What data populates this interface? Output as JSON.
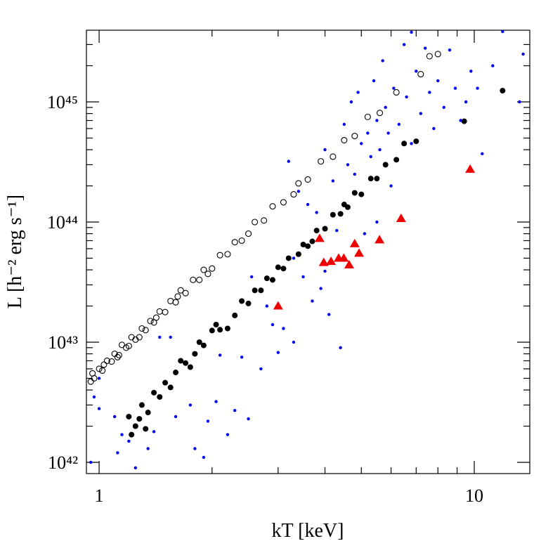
{
  "chart_data": {
    "type": "scatter",
    "xlabel": "kT [keV]",
    "ylabel": "L [h⁻² erg s⁻¹]",
    "xscale": "log",
    "yscale": "log",
    "xlim": [
      0.925,
      14.06
    ],
    "ylim": [
      8.06e+41,
      3.95e+45
    ],
    "xticks": [
      1,
      10
    ],
    "yticks": [
      {
        "value": 1e+42,
        "label": "10⁴²"
      },
      {
        "value": 1e+43,
        "label": "10⁴³"
      },
      {
        "value": 1e+44,
        "label": "10⁴⁴"
      },
      {
        "value": 1e+45,
        "label": "10⁴⁵"
      }
    ],
    "xminorticks": [
      2,
      3,
      4,
      5,
      6,
      7,
      8,
      9
    ],
    "yminorticks": [
      2e+42,
      3e+42,
      4e+42,
      5e+42,
      6e+42,
      7e+42,
      8e+42,
      9e+42,
      2e+43,
      3e+43,
      4e+43,
      5e+43,
      6e+43,
      7e+43,
      8e+43,
      9e+43,
      2e+44,
      3e+44,
      4e+44,
      5e+44,
      6e+44,
      7e+44,
      8e+44,
      9e+44,
      2e+45,
      3e+45
    ],
    "series": [
      {
        "marker": "open-circle",
        "color": "#000000",
        "x": [
          0.95,
          0.97,
          1.0,
          1.02,
          1.05,
          1.08,
          1.1,
          1.13,
          1.15,
          1.2,
          1.22,
          1.25,
          1.3,
          1.33,
          1.37,
          1.4,
          1.45,
          1.5,
          1.55,
          1.6,
          1.65,
          1.7,
          1.78,
          1.85,
          1.9,
          2.0,
          2.1,
          2.2,
          2.3,
          2.4,
          2.6,
          2.75,
          2.9,
          3.1,
          3.4,
          3.6,
          3.9,
          4.2,
          4.5,
          4.8,
          5.2,
          5.6,
          6.2,
          7.2,
          7.6,
          8.0,
          0.96,
          1.03,
          1.12,
          1.18,
          1.28,
          1.42,
          1.62,
          1.95,
          2.5,
          3.3
        ],
        "values": [
          4.7e+42,
          5e+42,
          6e+42,
          5.8e+42,
          7e+42,
          6.9e+42,
          8e+42,
          7.8e+42,
          9.5e+42,
          9.3e+42,
          1.1e+43,
          1.05e+43,
          1.3e+43,
          1.26e+43,
          1.5e+43,
          1.46e+43,
          1.8e+43,
          1.78e+43,
          2.2e+43,
          2.15e+43,
          2.7e+43,
          2.56e+43,
          3.3e+43,
          3.3e+43,
          4e+43,
          4.1e+43,
          5.3e+43,
          5.4e+43,
          6.8e+43,
          7e+43,
          1e+44,
          1.03e+44,
          1.35e+44,
          1.46e+44,
          2.1e+44,
          2.26e+44,
          3.2e+44,
          3.5e+44,
          4.8e+44,
          5.2e+44,
          7.5e+44,
          8.1e+44,
          1.2e+45,
          1.7e+45,
          2.4e+45,
          2.5e+45,
          5.5e+42,
          6.5e+42,
          7.5e+42,
          9e+42,
          1.1e+43,
          1.6e+43,
          2.4e+43,
          3.7e+43,
          8e+43,
          1.7e+44
        ]
      },
      {
        "marker": "dot",
        "color": "#000000",
        "x": [
          1.2,
          1.25,
          1.3,
          1.35,
          1.4,
          1.45,
          1.5,
          1.55,
          1.6,
          1.65,
          1.7,
          1.75,
          1.8,
          1.85,
          1.9,
          2.0,
          2.1,
          2.2,
          2.3,
          2.4,
          2.5,
          2.6,
          2.7,
          2.8,
          2.9,
          3.0,
          3.1,
          3.2,
          3.4,
          3.5,
          3.7,
          3.8,
          4.0,
          4.2,
          4.4,
          4.5,
          4.6,
          4.8,
          5.0,
          5.3,
          5.5,
          5.8,
          6.2,
          6.5,
          7.0,
          9.4,
          11.9,
          1.22,
          1.28,
          1.33,
          2.05,
          3.6
        ],
        "values": [
          2.4e+42,
          2e+42,
          3e+42,
          2.6e+42,
          3.8e+42,
          3.5e+42,
          4.6e+42,
          4.2e+42,
          5.6e+42,
          7e+42,
          6.7e+42,
          6.2e+42,
          8e+42,
          1e+43,
          9.4e+42,
          1.25e+43,
          1.27e+43,
          1.3e+43,
          1.67e+43,
          2.2e+43,
          2.1e+43,
          2.7e+43,
          2.7e+43,
          3.4e+43,
          3.3e+43,
          4.2e+43,
          4.1e+43,
          5e+43,
          5.4e+43,
          6.5e+43,
          6.9e+43,
          8.5e+43,
          8.8e+43,
          1.15e+44,
          1.17e+44,
          1.4e+44,
          1.33e+44,
          1.75e+44,
          1.7e+44,
          2.3e+44,
          2.3e+44,
          3e+44,
          3.3e+44,
          4.5e+44,
          4.7e+44,
          6.9e+44,
          1.24e+45,
          1.7e+42,
          2.3e+42,
          1.9e+42,
          1.4e+43,
          6.3e+43
        ]
      },
      {
        "marker": "small-dot",
        "color": "#0000ee",
        "x": [
          0.95,
          1.0,
          0.97,
          1.1,
          1.12,
          1.2,
          1.25,
          1.35,
          1.4,
          1.45,
          1.55,
          1.6,
          1.75,
          1.9,
          1.95,
          2.05,
          2.2,
          2.3,
          2.5,
          2.4,
          2.55,
          2.7,
          2.9,
          3.1,
          3.2,
          3.3,
          3.0,
          3.4,
          3.5,
          3.6,
          3.7,
          3.8,
          3.9,
          4.0,
          4.1,
          4.2,
          4.3,
          4.4,
          4.5,
          4.6,
          4.7,
          4.8,
          4.9,
          5.0,
          5.1,
          5.2,
          5.3,
          5.4,
          5.5,
          5.6,
          5.7,
          5.8,
          5.9,
          6.0,
          6.1,
          6.3,
          6.5,
          6.6,
          6.8,
          7.0,
          7.2,
          7.4,
          7.6,
          7.8,
          8.0,
          8.3,
          8.6,
          8.9,
          9.2,
          9.5,
          9.8,
          10.2,
          10.5,
          11.2,
          11.9,
          13.5,
          13.2,
          6.8,
          5.5,
          4.0,
          3.3,
          2.8,
          2.1,
          1.8,
          1.0,
          1.15
        ],
        "values": [
          1e+42,
          2.8e+42,
          3.5e+42,
          2.4e+42,
          1.2e+42,
          1.5e+42,
          9e+41,
          1.3e+42,
          1.8e+42,
          1.1e+43,
          1.1e+43,
          2.4e+42,
          3e+42,
          1.1e+42,
          2.2e+42,
          3.2e+42,
          1.7e+42,
          2.7e+42,
          2.3e+42,
          7.5e+42,
          3.5e+43,
          6e+42,
          1.4e+43,
          1.3e+43,
          3.2e+44,
          1e+43,
          8.2e+42,
          1.8e+44,
          3.5e+43,
          1.4e+44,
          2.2e+43,
          1.2e+44,
          2.8e+43,
          4e+44,
          1.7e+43,
          2.2e+44,
          8.5e+43,
          9e+42,
          6.5e+44,
          3e+44,
          1e+45,
          2.5e+44,
          1.2e+45,
          4.5e+44,
          8e+43,
          5.5e+44,
          3.5e+44,
          1.5e+45,
          7e+44,
          4e+44,
          2.2e+45,
          9e+44,
          5.5e+44,
          2e+44,
          1.3e+45,
          6.5e+44,
          3e+45,
          1.1e+45,
          4.5e+44,
          1.8e+45,
          8e+44,
          2.8e+45,
          1.2e+45,
          6e+44,
          1.5e+45,
          9e+44,
          2.7e+45,
          1.3e+45,
          7e+44,
          1e+45,
          1.8e+45,
          1.3e+45,
          3.7e+44,
          2e+45,
          3.85e+45,
          2.5e+45,
          1e+45,
          3.8e+45,
          1e+44,
          3.9e+43,
          5e+43,
          2e+43,
          7.8e+42,
          1.3e+42,
          5e+42,
          1.7e+42
        ]
      },
      {
        "marker": "triangle",
        "color": "#ee0000",
        "x": [
          3.0,
          3.87,
          3.97,
          4.15,
          4.35,
          4.49,
          4.64,
          4.8,
          4.93,
          5.59,
          6.38,
          9.75
        ],
        "values": [
          2e+43,
          7.3e+43,
          4.6e+43,
          4.7e+43,
          5e+43,
          5e+43,
          4.4e+43,
          6.6e+43,
          5.5e+43,
          7.1e+43,
          1.07e+44,
          2.75e+44
        ]
      }
    ]
  }
}
